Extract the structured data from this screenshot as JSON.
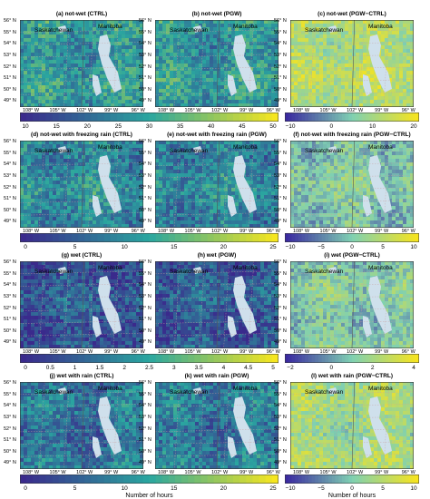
{
  "panels": [
    {
      "title": "(a) not-wet (CTRL)",
      "colormap": "sequential",
      "level": 0.45
    },
    {
      "title": "(b) not-wet (PGW)",
      "colormap": "sequential",
      "level": 0.45
    },
    {
      "title": "(c) not-wet (PGW−CTRL)",
      "colormap": "diverging",
      "level": 0.72
    },
    {
      "title": "(d) not-wet with freezing rain (CTRL)",
      "colormap": "sequential",
      "level": 0.4
    },
    {
      "title": "(e) not-wet with freezing rain (PGW)",
      "colormap": "sequential",
      "level": 0.38
    },
    {
      "title": "(f) not-wet with freezing rain (PGW−CTRL)",
      "colormap": "diverging",
      "level": 0.5
    },
    {
      "title": "(g) wet (CTRL)",
      "colormap": "sequential",
      "level": 0.18
    },
    {
      "title": "(h) wet (PGW)",
      "colormap": "sequential",
      "level": 0.2
    },
    {
      "title": "(i) wet (PGW−CTRL)",
      "colormap": "diverging",
      "level": 0.5
    },
    {
      "title": "(j) wet with rain (CTRL)",
      "colormap": "sequential",
      "level": 0.3
    },
    {
      "title": "(k) wet with rain (PGW)",
      "colormap": "sequential",
      "level": 0.32
    },
    {
      "title": "(l) wet with rain (PGW−CTRL)",
      "colormap": "diverging",
      "level": 0.65
    }
  ],
  "region_labels": {
    "left": "Saskatchewan",
    "right": "Manitoba"
  },
  "lat_labels": [
    "56° N",
    "55° N",
    "54° N",
    "53° N",
    "52° N",
    "51° N",
    "50° N",
    "49° N"
  ],
  "lon_labels": [
    "108° W",
    "105° W",
    "102° W",
    "99° W",
    "96° W"
  ],
  "colorbars": [
    {
      "row": 0,
      "left_ticks": [
        "10",
        "15",
        "20",
        "25",
        "30",
        "35",
        "40",
        "45",
        "50"
      ],
      "right_ticks": [
        "−10",
        "0",
        "10",
        "20"
      ],
      "left_title": "",
      "right_title": ""
    },
    {
      "row": 1,
      "left_ticks": [
        "0",
        "5",
        "10",
        "15",
        "20",
        "25"
      ],
      "right_ticks": [
        "−10",
        "−5",
        "0",
        "5",
        "10"
      ],
      "left_title": "",
      "right_title": ""
    },
    {
      "row": 2,
      "left_ticks": [
        "0",
        "0.5",
        "1",
        "1.5",
        "2",
        "2.5",
        "3",
        "3.5",
        "4",
        "4.5",
        "5"
      ],
      "right_ticks": [
        "−2",
        "0",
        "2",
        "4"
      ],
      "left_title": "",
      "right_title": ""
    },
    {
      "row": 3,
      "left_ticks": [
        "0",
        "5",
        "10",
        "15",
        "20",
        "25"
      ],
      "right_ticks": [
        "−10",
        "−5",
        "0",
        "5",
        "10"
      ],
      "left_title": "Number of hours",
      "right_title": "Number of hours"
    }
  ],
  "colors": {
    "seq_low": "#3a2a8c",
    "seq_mid": "#2aa6a0",
    "seq_high": "#f6e61f",
    "div_low": "#3b2aa0",
    "div_mid": "#7fd0b2",
    "div_high": "#f7e41e",
    "lake": "#cfe0ec",
    "grid": "#c8a0a0"
  }
}
